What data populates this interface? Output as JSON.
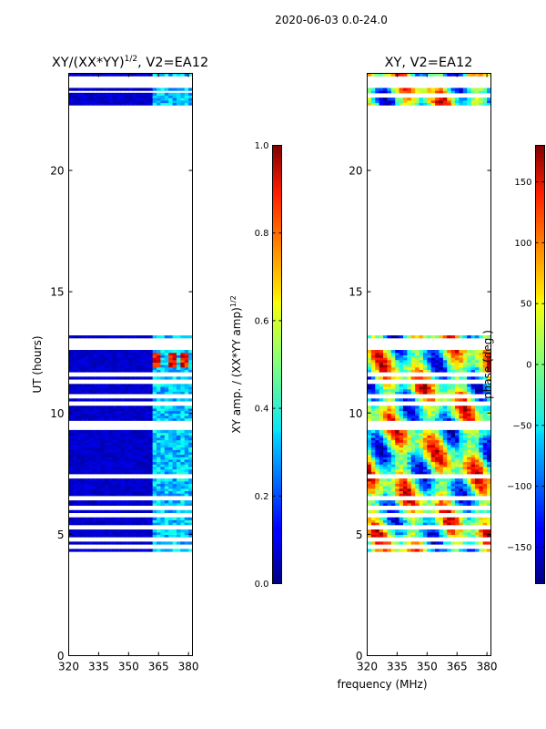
{
  "suptitle": "2020-06-03 0.0-24.0",
  "colors": {
    "heat_low": "#00007f",
    "heat_mid": "#7fff7f",
    "heat_high": "#7f0000",
    "frame": "#000000",
    "background": "#ffffff"
  },
  "chart_data": [
    {
      "type": "heatmap",
      "title_text": "XY/(XX*YY)",
      "title_exp": "1/2",
      "title_suffix": ", V2=EA12",
      "xlabel": "",
      "ylabel": "UT (hours)",
      "xlim": [
        320,
        382
      ],
      "ylim": [
        0,
        24
      ],
      "x_ticks": [
        320,
        335,
        350,
        365,
        380
      ],
      "y_ticks": [
        0,
        5,
        10,
        15,
        20
      ],
      "colorbar": {
        "label_text": "XY amp. / (XX*YY amp)",
        "label_exp": "1/2",
        "range": [
          0.0,
          1.0
        ],
        "ticks": [
          "0.0",
          "0.2",
          "0.4",
          "0.6",
          "0.8",
          "1.0"
        ],
        "tick_values": [
          0.0,
          0.2,
          0.4,
          0.6,
          0.8,
          1.0
        ]
      },
      "data_rows_hours": [
        [
          4.3,
          13.2
        ],
        [
          22.7,
          23.2
        ],
        [
          23.3,
          24.0
        ]
      ],
      "gap_rows_hours": [
        4.5,
        4.8,
        5.3,
        5.8,
        6.1,
        6.5,
        7.4,
        9.4,
        9.6,
        10.4,
        10.7,
        11.3,
        11.6,
        12.7,
        12.9,
        13.05,
        23.5,
        23.7,
        23.85
      ]
    },
    {
      "type": "heatmap",
      "title_text": "XY, V2=EA12",
      "title_exp": "",
      "title_suffix": "",
      "xlabel": "frequency (MHz)",
      "ylabel": "",
      "xlim": [
        320,
        382
      ],
      "ylim": [
        0,
        24
      ],
      "x_ticks": [
        320,
        335,
        350,
        365,
        380
      ],
      "y_ticks": [
        0,
        5,
        10,
        15,
        20
      ],
      "colorbar": {
        "label_text": "phase (deg.)",
        "label_exp": "",
        "range": [
          -180,
          180
        ],
        "ticks": [
          "−150",
          "−100",
          "−50",
          "0",
          "50",
          "100",
          "150"
        ],
        "tick_values": [
          -150,
          -100,
          -50,
          0,
          50,
          100,
          150
        ]
      },
      "data_rows_hours": [
        [
          4.3,
          13.2
        ],
        [
          22.7,
          24.0
        ]
      ],
      "gap_rows_hours": [
        4.5,
        4.8,
        5.3,
        5.8,
        6.1,
        6.5,
        7.4,
        9.4,
        9.6,
        10.4,
        10.7,
        11.3,
        11.6,
        12.7,
        12.9,
        13.05,
        23.1,
        23.5,
        23.7,
        23.85
      ]
    }
  ]
}
